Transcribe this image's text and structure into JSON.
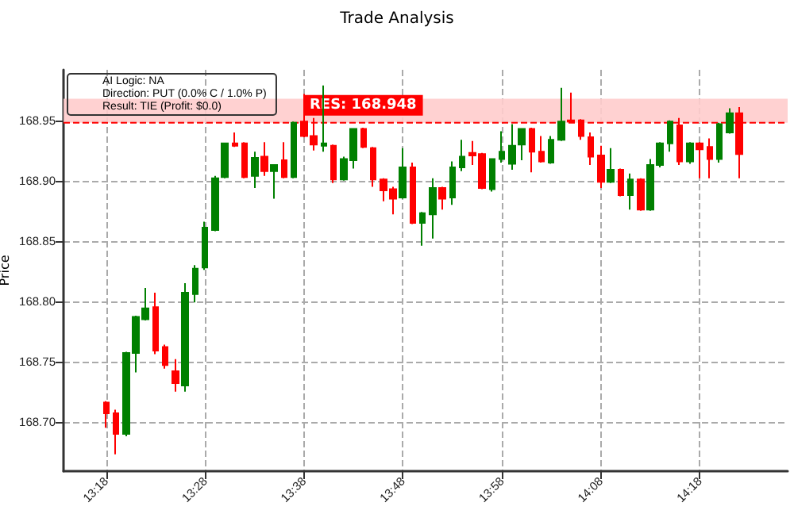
{
  "chart_data": {
    "type": "candlestick",
    "title": "Trade Analysis",
    "ylabel": "Price",
    "annotations": [
      "AI Logic: NA",
      "Direction: PUT (0.0% C / 1.0% P)",
      "Result: TIE (Profit: $0.0)"
    ],
    "x": [
      13.3,
      13.3167,
      13.3333,
      13.35,
      13.3667,
      13.3833,
      13.4,
      13.4167,
      13.4333,
      13.45,
      13.4667,
      13.4833,
      13.5,
      13.5167,
      13.5333,
      13.55,
      13.5667,
      13.5833,
      13.6,
      13.6167,
      13.6333,
      13.65,
      13.6667,
      13.6833,
      13.7,
      13.7167,
      13.7333,
      13.75,
      13.7667,
      13.7833,
      13.8,
      13.8167,
      13.8333,
      13.85,
      13.8667,
      13.8833,
      13.9,
      13.9167,
      13.9333,
      13.95,
      13.9667,
      13.9833,
      14.0,
      14.0167,
      14.0333,
      14.05,
      14.0667,
      14.0833,
      14.1,
      14.1167,
      14.1333,
      14.15,
      14.1667,
      14.1833,
      14.2,
      14.2167,
      14.2333,
      14.25,
      14.2667,
      14.2833,
      14.3,
      14.3167,
      14.3333,
      14.35,
      14.3667
    ],
    "ohlc": [
      [
        168.716,
        168.717,
        168.695,
        168.707
      ],
      [
        168.707,
        168.71,
        168.673,
        168.69
      ],
      [
        168.69,
        168.758,
        168.688,
        168.757
      ],
      [
        168.757,
        168.788,
        168.741,
        168.787
      ],
      [
        168.785,
        168.811,
        168.784,
        168.794
      ],
      [
        168.795,
        168.807,
        168.756,
        168.759
      ],
      [
        168.762,
        168.764,
        168.744,
        168.747
      ],
      [
        168.742,
        168.752,
        168.725,
        168.732
      ],
      [
        168.73,
        168.815,
        168.725,
        168.807
      ],
      [
        168.806,
        168.83,
        168.799,
        168.827
      ],
      [
        168.828,
        168.866,
        168.826,
        168.861
      ],
      [
        168.859,
        168.904,
        168.858,
        168.902
      ],
      [
        168.903,
        168.931,
        168.902,
        168.931
      ],
      [
        168.931,
        168.94,
        168.928,
        168.929
      ],
      [
        168.931,
        168.932,
        168.902,
        168.903
      ],
      [
        168.904,
        168.924,
        168.894,
        168.919
      ],
      [
        168.92,
        168.932,
        168.904,
        168.908
      ],
      [
        168.908,
        168.913,
        168.885,
        168.913
      ],
      [
        168.917,
        168.932,
        168.902,
        168.903
      ],
      [
        168.903,
        168.949,
        168.902,
        168.948
      ],
      [
        168.949,
        168.972,
        168.936,
        168.937
      ],
      [
        168.937,
        168.952,
        168.925,
        168.93
      ],
      [
        168.929,
        168.979,
        168.924,
        168.931
      ],
      [
        168.929,
        168.93,
        168.898,
        168.901
      ],
      [
        168.901,
        168.92,
        168.9,
        168.918
      ],
      [
        168.917,
        168.943,
        168.91,
        168.943
      ],
      [
        168.943,
        168.944,
        168.927,
        168.928
      ],
      [
        168.927,
        168.928,
        168.895,
        168.901
      ],
      [
        168.901,
        168.902,
        168.883,
        168.892
      ],
      [
        168.893,
        168.895,
        168.872,
        168.885
      ],
      [
        168.886,
        168.927,
        168.885,
        168.911
      ],
      [
        168.911,
        168.915,
        168.864,
        168.865
      ],
      [
        168.865,
        168.874,
        168.846,
        168.873
      ],
      [
        168.872,
        168.902,
        168.852,
        168.894
      ],
      [
        168.894,
        168.895,
        168.876,
        168.885
      ],
      [
        168.886,
        168.916,
        168.88,
        168.911
      ],
      [
        168.911,
        168.934,
        168.908,
        168.92
      ],
      [
        168.923,
        168.933,
        168.913,
        168.921
      ],
      [
        168.922,
        168.923,
        168.893,
        168.894
      ],
      [
        168.893,
        168.918,
        168.891,
        168.918
      ],
      [
        168.918,
        168.941,
        168.915,
        168.924
      ],
      [
        168.914,
        168.947,
        168.909,
        168.929
      ],
      [
        168.93,
        168.943,
        168.917,
        168.943
      ],
      [
        168.943,
        168.944,
        168.907,
        168.924
      ],
      [
        168.924,
        168.937,
        168.915,
        168.916
      ],
      [
        168.915,
        168.937,
        168.914,
        168.934
      ],
      [
        168.934,
        168.977,
        168.933,
        168.949
      ],
      [
        168.95,
        168.973,
        168.948,
        168.949
      ],
      [
        168.95,
        168.951,
        168.934,
        168.937
      ],
      [
        168.936,
        168.94,
        168.913,
        168.92
      ],
      [
        168.921,
        168.929,
        168.894,
        168.899
      ],
      [
        168.899,
        168.927,
        168.898,
        168.909
      ],
      [
        168.909,
        168.91,
        168.887,
        168.888
      ],
      [
        168.888,
        168.906,
        168.876,
        168.901
      ],
      [
        168.901,
        168.902,
        168.875,
        168.876
      ],
      [
        168.876,
        168.918,
        168.875,
        168.913
      ],
      [
        168.913,
        168.932,
        168.911,
        168.931
      ],
      [
        168.931,
        168.95,
        168.924,
        168.949
      ],
      [
        168.946,
        168.952,
        168.913,
        168.916
      ],
      [
        168.916,
        168.932,
        168.914,
        168.931
      ],
      [
        168.931,
        168.932,
        168.902,
        168.926
      ],
      [
        168.928,
        168.935,
        168.902,
        168.918
      ],
      [
        168.918,
        168.948,
        168.915,
        168.947
      ],
      [
        168.94,
        168.96,
        168.939,
        168.956
      ],
      [
        168.956,
        168.961,
        168.902,
        168.922
      ]
    ],
    "xlim": [
      13.2283,
      14.448
    ],
    "xticks": [
      {
        "value": 13.3,
        "label": "13:18"
      },
      {
        "value": 13.4667,
        "label": "13:28"
      },
      {
        "value": 13.6333,
        "label": "13:38"
      },
      {
        "value": 13.8,
        "label": "13:48"
      },
      {
        "value": 13.9667,
        "label": "13:58"
      },
      {
        "value": 14.1333,
        "label": "14:08"
      },
      {
        "value": 14.3,
        "label": "14:18"
      }
    ],
    "ylim": [
      168.659,
      168.992
    ],
    "yticks": [
      {
        "value": 168.7,
        "label": "168.70"
      },
      {
        "value": 168.75,
        "label": "168.75"
      },
      {
        "value": 168.8,
        "label": "168.80"
      },
      {
        "value": 168.85,
        "label": "168.85"
      },
      {
        "value": 168.9,
        "label": "168.90"
      },
      {
        "value": 168.95,
        "label": "168.95"
      }
    ],
    "ref_lines": [
      {
        "axis": "y",
        "value": 168.948,
        "label": "RES: 168.948",
        "color": "#ff0000",
        "line_style": "dashed"
      }
    ],
    "bands": [
      {
        "axis": "y",
        "from": 168.948,
        "to": 168.968,
        "color": "#ffcccc"
      }
    ],
    "grid": true
  }
}
